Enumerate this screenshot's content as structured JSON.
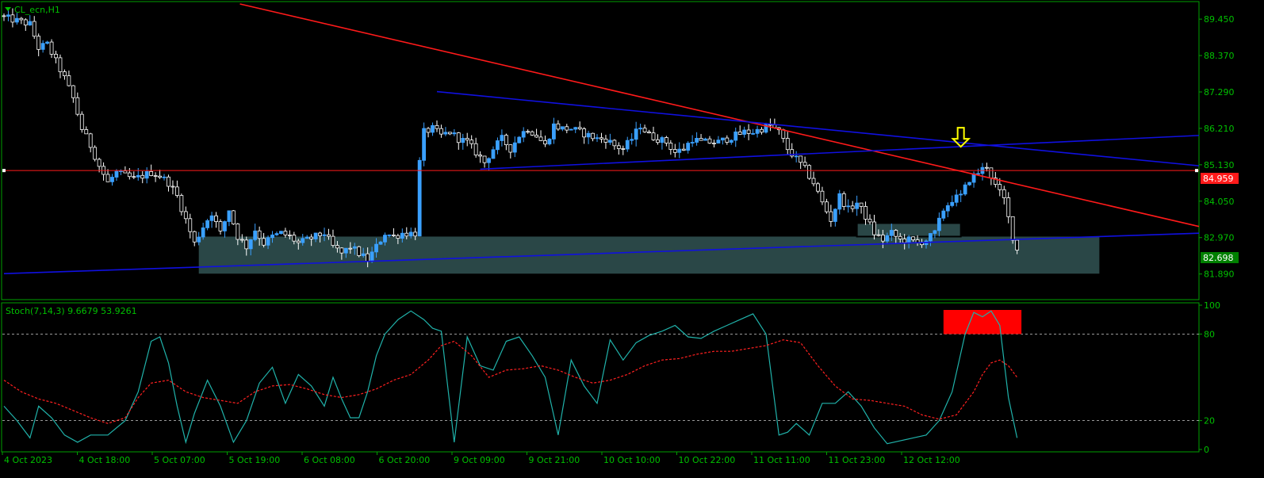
{
  "header": {
    "symbol_label": "CL_ecn,H1"
  },
  "price_badge": {
    "current": "84.959",
    "bid": "82.698"
  },
  "indicator": {
    "label": "Stoch(7,14,3) 9.6679 53.9261"
  },
  "colors": {
    "background": "#000000",
    "frame": "#00a000",
    "axis_text": "#00c000",
    "bull": "#3aa0ff",
    "bear": "#ffffff",
    "trendline_red": "#ff1a1a",
    "trendline_blue": "#1010e0",
    "zone": "#2f4f4f",
    "stoch_main": "#20b2aa",
    "stoch_signal": "#ff2020",
    "arrow": "#ffff00"
  },
  "chart_data": [
    {
      "type": "candlestick",
      "symbol": "CL_ecn",
      "timeframe": "H1",
      "ylim": [
        81.2,
        89.9
      ],
      "ytick_labels": [
        "89.450",
        "88.370",
        "87.290",
        "86.210",
        "85.130",
        "84.050",
        "82.970",
        "81.890"
      ],
      "yticks": [
        89.45,
        88.37,
        87.29,
        86.21,
        85.13,
        84.05,
        82.97,
        81.89
      ],
      "x_labels": [
        "4 Oct 2023",
        "4 Oct 18:00",
        "5 Oct 07:00",
        "5 Oct 19:00",
        "6 Oct 08:00",
        "6 Oct 20:00",
        "9 Oct 09:00",
        "9 Oct 21:00",
        "10 Oct 10:00",
        "10 Oct 22:00",
        "11 Oct 11:00",
        "11 Oct 23:00",
        "12 Oct 12:00"
      ],
      "horizontal_line": 84.959,
      "close_path": [
        [
          0,
          89.5
        ],
        [
          3,
          89.4
        ],
        [
          6,
          89.3
        ],
        [
          8,
          88.6
        ],
        [
          10,
          88.7
        ],
        [
          12,
          88.2
        ],
        [
          14,
          87.7
        ],
        [
          16,
          87.1
        ],
        [
          18,
          86.2
        ],
        [
          20,
          85.7
        ],
        [
          22,
          85.1
        ],
        [
          24,
          84.6
        ],
        [
          26,
          84.9
        ],
        [
          28,
          84.8
        ],
        [
          30,
          84.7
        ],
        [
          32,
          84.8
        ],
        [
          34,
          84.9
        ],
        [
          36,
          84.8
        ],
        [
          38,
          84.6
        ],
        [
          40,
          84.2
        ],
        [
          42,
          83.5
        ],
        [
          44,
          82.8
        ],
        [
          46,
          83.3
        ],
        [
          48,
          83.7
        ],
        [
          50,
          83.1
        ],
        [
          52,
          83.8
        ],
        [
          54,
          83.0
        ],
        [
          56,
          82.7
        ],
        [
          58,
          83.2
        ],
        [
          60,
          82.8
        ],
        [
          62,
          83.0
        ],
        [
          64,
          83.1
        ],
        [
          66,
          83.0
        ],
        [
          68,
          82.8
        ],
        [
          70,
          82.9
        ],
        [
          72,
          83.0
        ],
        [
          74,
          83.1
        ],
        [
          76,
          82.7
        ],
        [
          78,
          82.5
        ],
        [
          80,
          82.7
        ],
        [
          82,
          82.5
        ],
        [
          84,
          82.3
        ],
        [
          86,
          82.7
        ],
        [
          88,
          83.1
        ],
        [
          90,
          83.0
        ],
        [
          92,
          83.1
        ],
        [
          94,
          83.1
        ],
        [
          95,
          83.1
        ],
        [
          96,
          85.2
        ],
        [
          97,
          86.1
        ],
        [
          99,
          86.2
        ],
        [
          101,
          86.0
        ],
        [
          103,
          86.1
        ],
        [
          105,
          85.9
        ],
        [
          107,
          85.8
        ],
        [
          109,
          85.5
        ],
        [
          111,
          85.2
        ],
        [
          113,
          85.6
        ],
        [
          115,
          85.9
        ],
        [
          117,
          85.6
        ],
        [
          119,
          86.0
        ],
        [
          121,
          86.2
        ],
        [
          123,
          86.0
        ],
        [
          125,
          85.7
        ],
        [
          127,
          86.3
        ],
        [
          129,
          86.2
        ],
        [
          131,
          86.2
        ],
        [
          133,
          86.1
        ],
        [
          135,
          86.0
        ],
        [
          137,
          85.9
        ],
        [
          139,
          85.9
        ],
        [
          141,
          85.7
        ],
        [
          143,
          85.6
        ],
        [
          145,
          85.9
        ],
        [
          147,
          86.3
        ],
        [
          149,
          86.0
        ],
        [
          151,
          85.9
        ],
        [
          153,
          85.8
        ],
        [
          155,
          85.5
        ],
        [
          157,
          85.6
        ],
        [
          159,
          85.9
        ],
        [
          161,
          85.8
        ],
        [
          163,
          85.8
        ],
        [
          165,
          85.8
        ],
        [
          167,
          85.9
        ],
        [
          169,
          86.0
        ],
        [
          171,
          86.1
        ],
        [
          173,
          86.1
        ],
        [
          175,
          86.2
        ],
        [
          177,
          86.3
        ],
        [
          179,
          86.1
        ],
        [
          181,
          85.6
        ],
        [
          183,
          85.3
        ],
        [
          185,
          85.0
        ],
        [
          187,
          84.6
        ],
        [
          189,
          84.0
        ],
        [
          191,
          83.5
        ],
        [
          193,
          84.2
        ],
        [
          195,
          83.8
        ],
        [
          197,
          84.0
        ],
        [
          199,
          83.6
        ],
        [
          201,
          83.1
        ],
        [
          203,
          82.9
        ],
        [
          205,
          83.1
        ],
        [
          207,
          82.9
        ],
        [
          209,
          82.9
        ],
        [
          211,
          82.8
        ],
        [
          213,
          82.9
        ],
        [
          215,
          83.1
        ],
        [
          217,
          83.8
        ],
        [
          219,
          84.1
        ],
        [
          221,
          84.2
        ],
        [
          223,
          84.7
        ],
        [
          225,
          84.9
        ],
        [
          227,
          85.1
        ],
        [
          229,
          84.5
        ],
        [
          231,
          84.1
        ],
        [
          233,
          83.0
        ],
        [
          234,
          82.6
        ]
      ],
      "trendlines": [
        {
          "name": "resistance",
          "color": "red",
          "x": [
            54.5,
            287
          ],
          "y": [
            89.9,
            83.3
          ]
        },
        {
          "name": "upper-channel",
          "color": "blue",
          "x": [
            100,
            287
          ],
          "y": [
            87.3,
            85.1
          ]
        },
        {
          "name": "lower-channel",
          "color": "blue",
          "x": [
            110,
            287
          ],
          "y": [
            85.0,
            86.0
          ]
        },
        {
          "name": "long-support",
          "color": "blue",
          "x": [
            0,
            287
          ],
          "y": [
            81.9,
            83.1
          ]
        }
      ],
      "zones": [
        {
          "x": [
            45,
            253
          ],
          "y": [
            81.9,
            83.0
          ],
          "color": "dark-slate"
        },
        {
          "x": [
            197,
            221
          ],
          "y": [
            83.0,
            83.4
          ],
          "color": "dark-slate"
        }
      ],
      "annotations": [
        {
          "kind": "down-arrow",
          "x": 221,
          "y": 85.9
        }
      ]
    },
    {
      "type": "line",
      "name": "Stoch(7,14,3)",
      "ylim": [
        0,
        100
      ],
      "ytick_labels": [
        "100",
        "80",
        "20",
        "0"
      ],
      "yticks": [
        100,
        80,
        20,
        0
      ],
      "levels": [
        80,
        20
      ],
      "series": [
        {
          "name": "main",
          "x": [
            0,
            3,
            6,
            8,
            11,
            14,
            17,
            20,
            24,
            28,
            31,
            34,
            36,
            38,
            40,
            42,
            44,
            47,
            50,
            53,
            56,
            59,
            62,
            65,
            68,
            71,
            74,
            76,
            78,
            80,
            82,
            84,
            86,
            88,
            91,
            94,
            97,
            99,
            101,
            104,
            107,
            110,
            113,
            116,
            119,
            122,
            125,
            128,
            131,
            134,
            137,
            140,
            143,
            146,
            149,
            152,
            155,
            158,
            161,
            164,
            167,
            170,
            173,
            176,
            179,
            181,
            183,
            186,
            189,
            192,
            195,
            198,
            201,
            204,
            207,
            210,
            213,
            216,
            219,
            222,
            224,
            226,
            228,
            230,
            232,
            234
          ],
          "y": [
            30,
            20,
            8,
            30,
            22,
            10,
            5,
            10,
            10,
            20,
            40,
            75,
            78,
            60,
            30,
            5,
            25,
            48,
            30,
            5,
            20,
            46,
            57,
            32,
            52,
            44,
            30,
            50,
            35,
            22,
            22,
            40,
            65,
            80,
            90,
            96,
            90,
            84,
            82,
            5,
            78,
            58,
            55,
            75,
            78,
            65,
            50,
            10,
            62,
            44,
            32,
            76,
            62,
            74,
            79,
            82,
            86,
            78,
            77,
            82,
            86,
            90,
            94,
            80,
            10,
            12,
            18,
            10,
            32,
            32,
            40,
            30,
            15,
            4,
            6,
            8,
            10,
            20,
            40,
            80,
            95,
            92,
            96,
            86,
            36,
            8
          ]
        },
        {
          "name": "signal",
          "x": [
            0,
            4,
            8,
            12,
            16,
            20,
            24,
            28,
            31,
            34,
            38,
            42,
            46,
            50,
            54,
            58,
            62,
            66,
            70,
            74,
            78,
            82,
            86,
            90,
            94,
            98,
            101,
            104,
            108,
            112,
            116,
            120,
            124,
            128,
            132,
            136,
            140,
            144,
            148,
            152,
            156,
            160,
            164,
            168,
            172,
            176,
            180,
            184,
            188,
            192,
            196,
            200,
            204,
            208,
            212,
            216,
            220,
            224,
            226,
            228,
            230,
            232,
            234
          ],
          "y": [
            48,
            40,
            35,
            32,
            27,
            22,
            18,
            22,
            36,
            46,
            48,
            40,
            36,
            34,
            32,
            40,
            44,
            45,
            42,
            38,
            36,
            38,
            42,
            48,
            52,
            62,
            72,
            75,
            65,
            50,
            55,
            56,
            58,
            55,
            50,
            46,
            48,
            52,
            58,
            62,
            63,
            66,
            68,
            68,
            70,
            72,
            76,
            74,
            58,
            44,
            35,
            34,
            32,
            30,
            24,
            21,
            24,
            40,
            52,
            60,
            62,
            58,
            50
          ]
        }
      ],
      "annotations": [
        {
          "kind": "overbought-box",
          "x": [
            217,
            235
          ],
          "y": [
            80,
            100
          ],
          "color": "red"
        }
      ]
    }
  ]
}
